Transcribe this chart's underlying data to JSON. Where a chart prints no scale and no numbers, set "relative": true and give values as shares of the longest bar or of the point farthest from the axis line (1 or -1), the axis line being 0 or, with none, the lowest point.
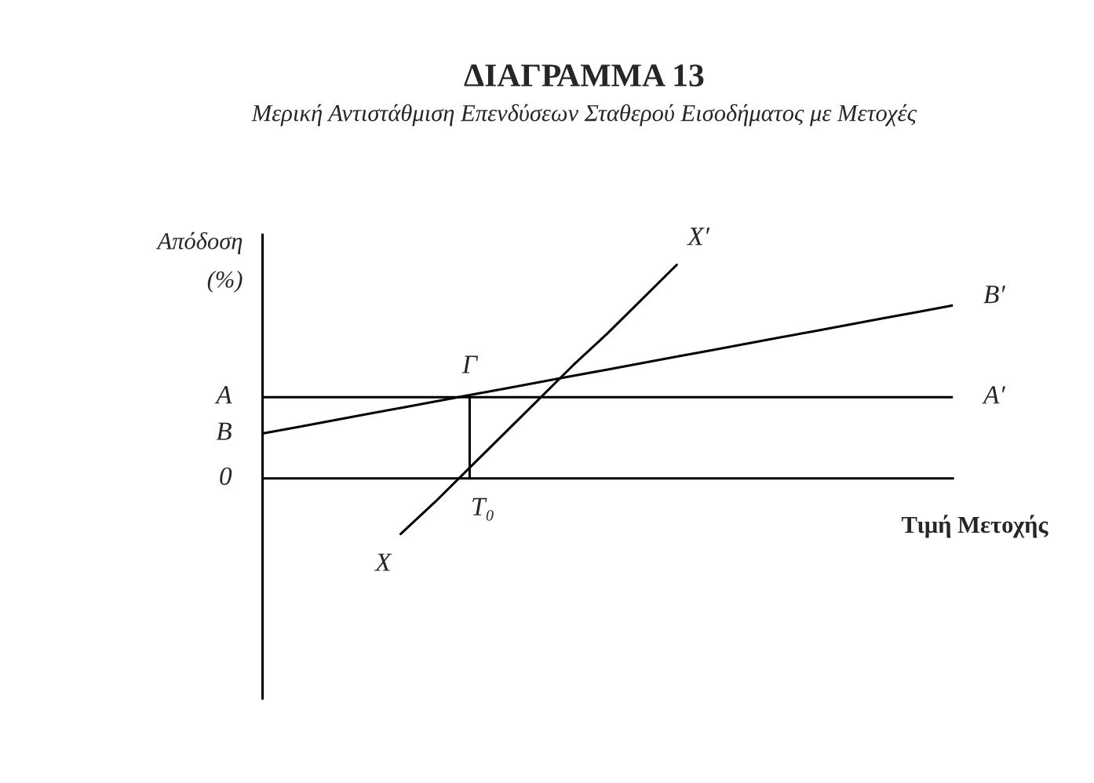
{
  "chart_data": {
    "type": "line",
    "title": "ΔΙΑΓΡΑΜΜΑ 13",
    "subtitle": "Μερική Αντιστάθμιση Επενδύσεων Σταθερού Εισοδήματος με Μετοχές",
    "xlabel": "Τιμή Μετοχής",
    "ylabel": "Απόδοση\n(%)",
    "relative": true,
    "legend": false,
    "marker": "none",
    "line_style": "solid",
    "categories": [
      null,
      null,
      null,
      null,
      null,
      null,
      null,
      null,
      null,
      null,
      null,
      null,
      null,
      null,
      null,
      null,
      null,
      null,
      null,
      null,
      null
    ],
    "series": [
      {
        "color": "#000000",
        "values": [
          0.38,
          0.38,
          0.38,
          0.38,
          0.38,
          0.38,
          0.38,
          0.38,
          0.38,
          0.38,
          0.38,
          0.38,
          0.38,
          0.38,
          0.38,
          0.38,
          0.38,
          0.38,
          0.38,
          0.38,
          0.38
        ]
      },
      {
        "color": "#000000",
        "values": [
          0.21,
          0.24,
          0.27,
          0.3,
          0.33,
          0.36,
          0.39,
          0.42,
          0.45,
          0.48,
          0.51,
          0.54,
          0.57,
          0.6,
          0.63,
          0.66,
          0.69,
          0.72,
          0.75,
          0.78,
          0.81
        ]
      },
      {
        "color": "#000000",
        "values": [
          null,
          null,
          null,
          null,
          -0.26,
          -0.11,
          0.05,
          0.21,
          0.37,
          0.53,
          0.68,
          0.84,
          1.0,
          null,
          null,
          null,
          null,
          null,
          null,
          null,
          null
        ]
      }
    ],
    "annotations": [
      "A",
      "B",
      "0",
      "Γ",
      "T₀",
      "X",
      "X′",
      "A′",
      "B′"
    ]
  }
}
